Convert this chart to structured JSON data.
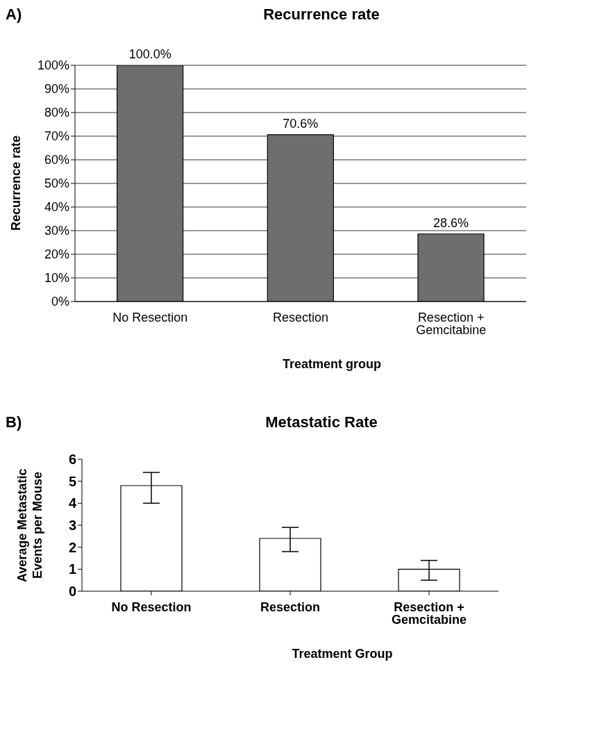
{
  "chart_data": [
    {
      "type": "bar",
      "title": "Recurrence rate",
      "xlabel": "Treatment group",
      "ylabel": "Recurrence rate",
      "annotations": [
        "A)"
      ],
      "categories": [
        "No Resection",
        "Resection",
        "Resection + Gemcitabine"
      ],
      "values": [
        100,
        70.6,
        28.6
      ],
      "color": "#6e6e6e",
      "value_labels": [
        "100.0%",
        "70.6%",
        "28.6%"
      ],
      "ylim": [
        0,
        100
      ],
      "yticks": [
        {
          "value": 0,
          "label": "0%"
        },
        {
          "value": 10,
          "label": "10%"
        },
        {
          "value": 20,
          "label": "20%"
        },
        {
          "value": 30,
          "label": "30%"
        },
        {
          "value": 40,
          "label": "40%"
        },
        {
          "value": 50,
          "label": "50%"
        },
        {
          "value": 60,
          "label": "60%"
        },
        {
          "value": 70,
          "label": "70%"
        },
        {
          "value": 80,
          "label": "80%"
        },
        {
          "value": 90,
          "label": "90%"
        },
        {
          "value": 100,
          "label": "100%"
        }
      ],
      "grid": "y"
    },
    {
      "type": "bar",
      "title": "Metastatic Rate",
      "xlabel": "Treatment Group",
      "ylabel": "Average Metastatic Events per Mouse",
      "annotations": [
        "B)"
      ],
      "categories": [
        "No Resection",
        "Resection",
        "Resection + Gemcitabine"
      ],
      "values": [
        4.8,
        2.4,
        1.0
      ],
      "errors": [
        [
          4.0,
          5.4
        ],
        [
          1.8,
          2.9
        ],
        [
          0.5,
          1.4
        ]
      ],
      "color": "#ffffff",
      "ylim": [
        0,
        6
      ],
      "yticks": [
        0,
        1,
        2,
        3,
        4,
        5,
        6
      ]
    }
  ]
}
